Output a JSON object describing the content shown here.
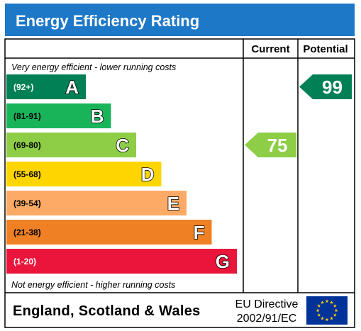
{
  "title": "Energy Efficiency Rating",
  "columns": {
    "current": "Current",
    "potential": "Potential"
  },
  "top_note": "Very energy efficient - lower running costs",
  "bottom_note": "Not energy efficient - higher running costs",
  "footer": {
    "country": "England, Scotland & Wales",
    "directive_line1": "EU Directive",
    "directive_line2": "2002/91/EC"
  },
  "colors": {
    "header": "#1e78c8",
    "A": "#008054",
    "B": "#19b459",
    "C": "#8dce46",
    "D": "#ffd500",
    "E": "#fcaa65",
    "F": "#ef8023",
    "G": "#e9153b",
    "current_arrow": "#8dce46",
    "potential_arrow": "#008054",
    "eu_flag": "#003399",
    "eu_stars": "#ffcc00"
  },
  "chart_data": {
    "type": "bar",
    "bands": [
      {
        "letter": "A",
        "range": "(92+)"
      },
      {
        "letter": "B",
        "range": "(81-91)"
      },
      {
        "letter": "C",
        "range": "(69-80)"
      },
      {
        "letter": "D",
        "range": "(55-68)"
      },
      {
        "letter": "E",
        "range": "(39-54)"
      },
      {
        "letter": "F",
        "range": "(21-38)"
      },
      {
        "letter": "G",
        "range": "(1-20)"
      }
    ],
    "current": {
      "value": 75,
      "band": "C"
    },
    "potential": {
      "value": 99,
      "band": "A"
    }
  }
}
